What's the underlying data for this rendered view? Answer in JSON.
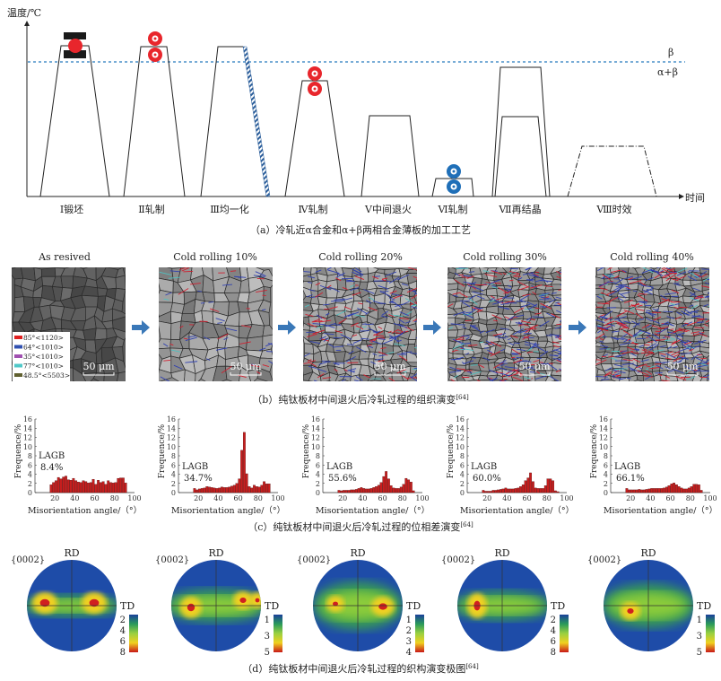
{
  "panel_a": {
    "y_axis_label": "温度/℃",
    "x_axis_label": "时间",
    "beta_label": "β",
    "alpha_beta_label": "α+β",
    "steps": [
      "Ⅰ锻坯",
      "Ⅱ轧制",
      "Ⅲ均一化",
      "Ⅳ轧制",
      "Ⅴ中间退火",
      "Ⅵ轧制",
      "Ⅶ再结晶",
      "Ⅷ时效"
    ],
    "caption": "（a）冷轧近α合金和α+β两相合金薄板的加工工艺",
    "colors": {
      "hot_roll": "#e8262c",
      "cold_roll": "#1f6fb8",
      "beta_line": "#4a90c8"
    }
  },
  "panel_b": {
    "titles": [
      "As resived",
      "Cold rolling 10%",
      "Cold rolling 20%",
      "Cold rolling 30%",
      "Cold rolling 40%"
    ],
    "scale_bar": "50 μm",
    "legend": [
      {
        "label": "85°<1120>",
        "color": "#e02020"
      },
      {
        "label": "64°<1010>",
        "color": "#3050b0"
      },
      {
        "label": "35°<1010>",
        "color": "#a050b0"
      },
      {
        "label": "77°<1010>",
        "color": "#50c8c8"
      },
      {
        "label": "48.5°<5503>",
        "color": "#606030"
      }
    ],
    "caption": "（b）纯钛板材中间退火后冷轧过程的组织演变",
    "ref": "[64]"
  },
  "chart_data": [
    {
      "type": "bar",
      "xlabel": "Misorientation angle/（°）",
      "ylabel": "Frequence/%",
      "xlim": [
        0,
        100
      ],
      "ylim": [
        0,
        16
      ],
      "xticks": [
        20,
        40,
        60,
        80,
        100
      ],
      "yticks": [
        0,
        2,
        4,
        6,
        8,
        10,
        12,
        14,
        16
      ],
      "bin_start": 15,
      "bin_width": 2.5,
      "annotation": "LAGB",
      "lagb": "8.4%",
      "values": [
        1.7,
        2.2,
        2.6,
        3.3,
        3.0,
        3.4,
        3.6,
        2.8,
        2.7,
        3.1,
        2.6,
        2.3,
        2.2,
        2.6,
        2.4,
        2.1,
        2.2,
        2.9,
        1.8,
        2.7,
        2.2,
        2.4,
        1.8,
        2.6,
        2.2,
        2.1,
        2.2,
        3.1,
        3.2,
        3.2,
        2.1
      ]
    },
    {
      "type": "bar",
      "xlabel": "Misorientation angle/（°）",
      "ylabel": "Frequence/%",
      "xlim": [
        0,
        100
      ],
      "ylim": [
        0,
        16
      ],
      "xticks": [
        20,
        40,
        60,
        80,
        100
      ],
      "yticks": [
        0,
        2,
        4,
        6,
        8,
        10,
        12,
        14,
        16
      ],
      "bin_start": 15,
      "bin_width": 2.5,
      "annotation": "LAGB",
      "lagb": "34.7%",
      "values": [
        0.9,
        0.6,
        0.8,
        0.9,
        1.0,
        1.3,
        1.2,
        1.1,
        1.0,
        0.9,
        1.0,
        1.2,
        1.1,
        1.1,
        1.2,
        1.4,
        1.6,
        2.0,
        3.0,
        9.2,
        13.1,
        4.1,
        1.3,
        1.0,
        1.6,
        1.3,
        1.2,
        1.6,
        2.4,
        1.9,
        1.9
      ]
    },
    {
      "type": "bar",
      "xlabel": "Misorientation angle/（°）",
      "ylabel": "Frequence/%",
      "xlim": [
        0,
        100
      ],
      "ylim": [
        0,
        16
      ],
      "xticks": [
        20,
        40,
        60,
        80,
        100
      ],
      "yticks": [
        0,
        2,
        4,
        6,
        8,
        10,
        12,
        14,
        16
      ],
      "bin_start": 15,
      "bin_width": 2.5,
      "annotation": "LAGB",
      "lagb": "55.6%",
      "values": [
        0.5,
        0.4,
        0.5,
        0.5,
        0.5,
        0.6,
        0.6,
        0.7,
        0.9,
        1.1,
        0.9,
        0.8,
        0.8,
        0.9,
        1.1,
        1.3,
        1.6,
        2.2,
        3.5,
        4.6,
        3.0,
        1.5,
        1.0,
        0.9,
        0.9,
        1.2,
        1.8,
        3.1,
        2.8,
        2.3,
        0.4
      ]
    },
    {
      "type": "bar",
      "xlabel": "Misorientation angle/（°）",
      "ylabel": "Frequence/%",
      "xlim": [
        0,
        100
      ],
      "ylim": [
        0,
        16
      ],
      "xticks": [
        20,
        40,
        60,
        80,
        100
      ],
      "yticks": [
        0,
        2,
        4,
        6,
        8,
        10,
        12,
        14,
        16
      ],
      "bin_start": 15,
      "bin_width": 2.5,
      "annotation": "LAGB",
      "lagb": "60.0%",
      "values": [
        0.5,
        0.3,
        0.3,
        0.3,
        0.5,
        0.5,
        0.6,
        0.7,
        0.8,
        1.0,
        0.8,
        0.8,
        0.8,
        0.9,
        1.0,
        1.3,
        1.7,
        2.6,
        3.2,
        4.3,
        2.4,
        1.0,
        0.9,
        0.9,
        0.9,
        1.5,
        3.0,
        3.0,
        2.6,
        0.4,
        0.2
      ]
    },
    {
      "type": "bar",
      "xlabel": "Misorientation angle/（°）",
      "ylabel": "Frequence/%",
      "xlim": [
        0,
        100
      ],
      "ylim": [
        0,
        16
      ],
      "xticks": [
        20,
        40,
        60,
        80,
        100
      ],
      "yticks": [
        0,
        2,
        4,
        6,
        8,
        10,
        12,
        14,
        16
      ],
      "bin_start": 15,
      "bin_width": 2.5,
      "annotation": "LAGB",
      "lagb": "66.1%",
      "values": [
        0.9,
        0.6,
        0.6,
        0.6,
        0.6,
        0.7,
        0.6,
        0.6,
        0.7,
        0.8,
        0.9,
        0.9,
        0.9,
        0.9,
        0.9,
        1.0,
        1.2,
        1.5,
        1.9,
        2.1,
        1.7,
        1.3,
        1.0,
        0.8,
        0.8,
        1.0,
        1.3,
        1.8,
        1.8,
        1.7,
        0.5
      ]
    }
  ],
  "panel_c": {
    "caption": "（c）纯钛板材中间退火后冷轧过程的位相差演变",
    "ref": "[64]",
    "bar_color": "#c81e1e"
  },
  "panel_d": {
    "plane": "{0002}",
    "rd": "RD",
    "td": "TD",
    "colorbars": [
      [
        "2",
        "4",
        "6",
        "8"
      ],
      [
        "1",
        "3",
        "5"
      ],
      [
        "1",
        "2",
        "3",
        "4"
      ],
      [
        "2",
        "4",
        "6",
        "8"
      ],
      [
        "1",
        "3",
        "5"
      ]
    ],
    "caption": "（d）纯钛板材中间退火后冷轧过程的织构演变极图",
    "ref": "[64]"
  }
}
